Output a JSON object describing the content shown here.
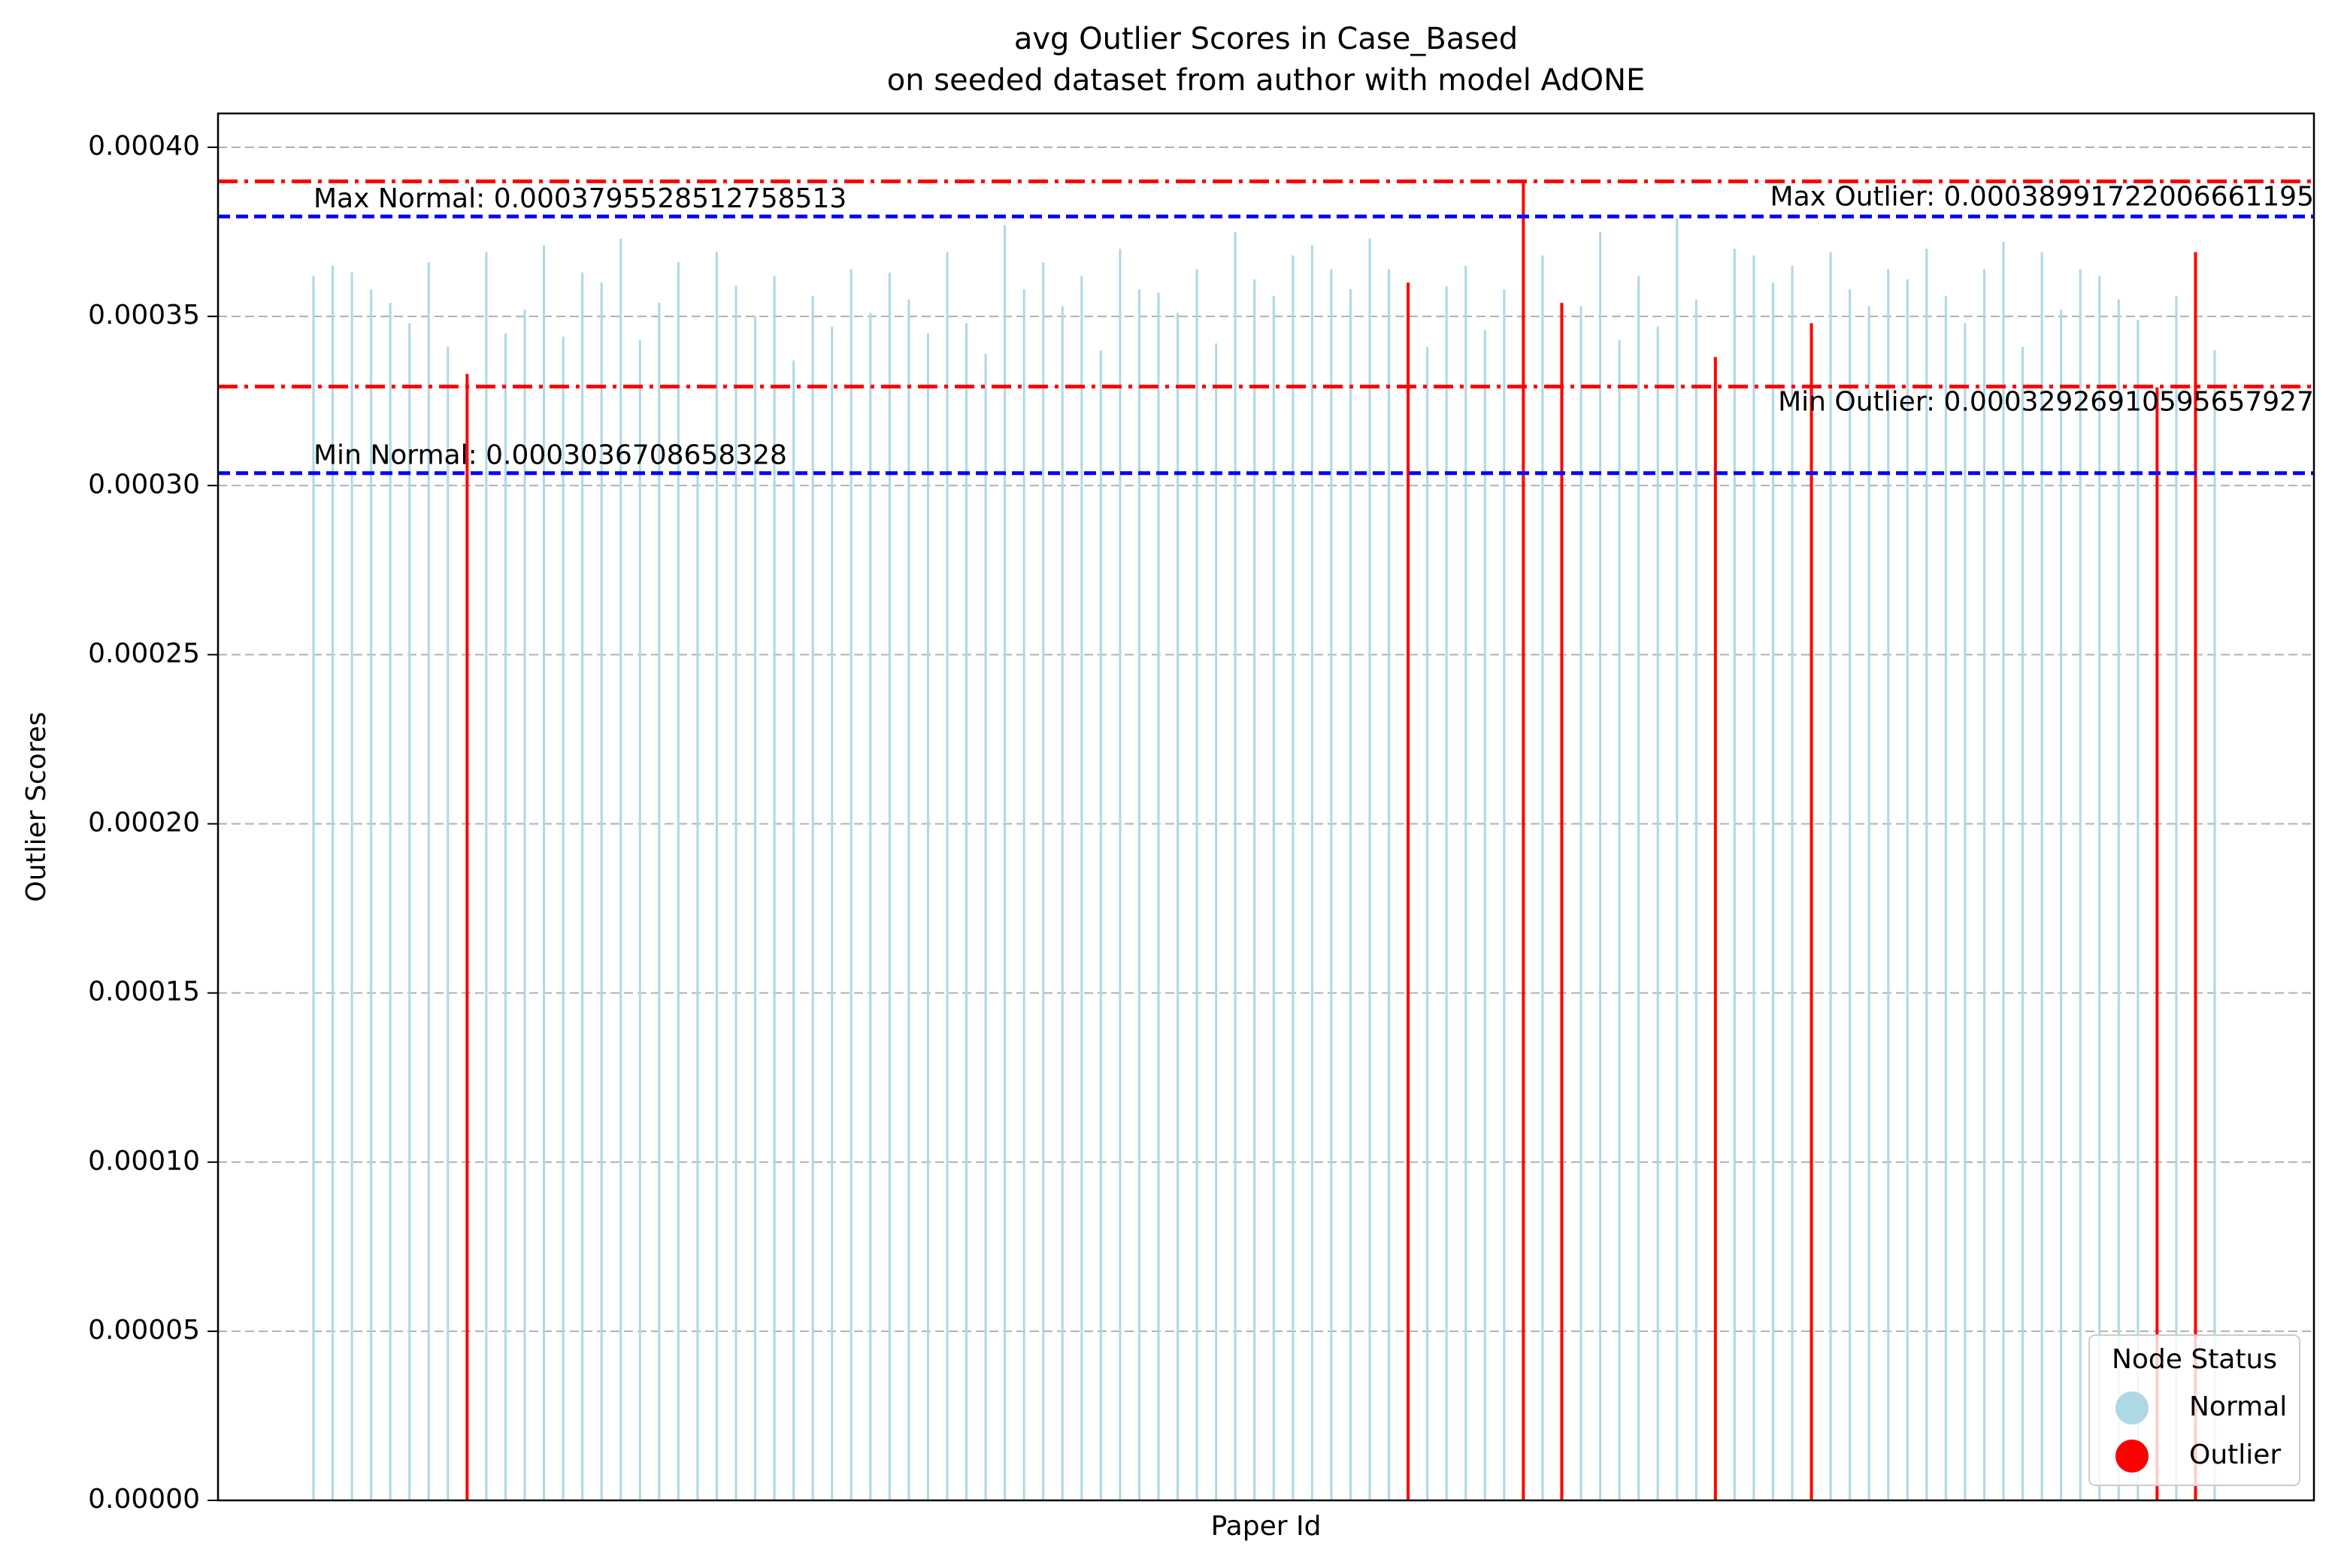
{
  "chart_data": {
    "type": "bar",
    "title": "avg Outlier Scores in Case_Based",
    "subtitle": "on seeded dataset from author with model AdONE",
    "x_label": "Paper Id",
    "y_label": "Outlier Scores",
    "categories": [
      null,
      null,
      null,
      null,
      null,
      null,
      null,
      null,
      null,
      null,
      null,
      null,
      null,
      null,
      null,
      null,
      null,
      null,
      null,
      null,
      null,
      null,
      null,
      null,
      null,
      null,
      null,
      null,
      null,
      null,
      null,
      null,
      null,
      null,
      null,
      null,
      null,
      null,
      null,
      null,
      null,
      null,
      null,
      null,
      null,
      null,
      null,
      null,
      null,
      null,
      null,
      null,
      null,
      null,
      null,
      null,
      null,
      null,
      null,
      null,
      null,
      null,
      null,
      null,
      null,
      null,
      null,
      null,
      null,
      null,
      null,
      null,
      null,
      null,
      null,
      null,
      null,
      null,
      null,
      null,
      null,
      null,
      null,
      null,
      null,
      null,
      null,
      null,
      null,
      null,
      null,
      null,
      null,
      null,
      null,
      null,
      null,
      null,
      null,
      null
    ],
    "series": [
      {
        "name": "Normal",
        "color": "#add8e6",
        "values": [
          0.000362,
          0.000365,
          0.000363,
          0.000358,
          0.000354,
          0.000348,
          0.000366,
          0.000341,
          null,
          0.000369,
          0.000345,
          0.000352,
          0.000371,
          0.000344,
          0.000363,
          0.00036,
          0.000373,
          0.000343,
          0.000354,
          0.000366,
          0.000304,
          0.000369,
          0.000359,
          0.00035,
          0.000362,
          0.000337,
          0.000356,
          0.000347,
          0.000364,
          0.000351,
          0.000363,
          0.000355,
          0.000345,
          0.000369,
          0.000348,
          0.000339,
          0.000377,
          0.000358,
          0.000366,
          0.000353,
          0.000362,
          0.00034,
          0.00037,
          0.000358,
          0.000357,
          0.000351,
          0.000364,
          0.000342,
          0.000375,
          0.000361,
          0.000356,
          0.000368,
          0.000371,
          0.000364,
          0.000358,
          0.000373,
          0.000364,
          null,
          0.000341,
          0.000359,
          0.000365,
          0.000346,
          0.000358,
          null,
          0.000368,
          null,
          0.000353,
          0.000375,
          0.000343,
          0.000362,
          0.000347,
          0.000379,
          0.000355,
          null,
          0.00037,
          0.000368,
          0.00036,
          0.000365,
          null,
          0.000369,
          0.000358,
          0.000353,
          0.000364,
          0.000361,
          0.00037,
          0.000356,
          0.000348,
          0.000364,
          0.000372,
          0.000341,
          0.000369,
          0.000352,
          0.000364,
          0.000362,
          0.000355,
          0.000349,
          null,
          0.000356,
          null,
          0.00034
        ]
      },
      {
        "name": "Outlier",
        "color": "#ff0000",
        "values": [
          null,
          null,
          null,
          null,
          null,
          null,
          null,
          null,
          0.000333,
          null,
          null,
          null,
          null,
          null,
          null,
          null,
          null,
          null,
          null,
          null,
          null,
          null,
          null,
          null,
          null,
          null,
          null,
          null,
          null,
          null,
          null,
          null,
          null,
          null,
          null,
          null,
          null,
          null,
          null,
          null,
          null,
          null,
          null,
          null,
          null,
          null,
          null,
          null,
          null,
          null,
          null,
          null,
          null,
          null,
          null,
          null,
          null,
          0.00036,
          null,
          null,
          null,
          null,
          null,
          0.00039,
          null,
          0.000354,
          null,
          null,
          null,
          null,
          null,
          null,
          null,
          0.000338,
          null,
          null,
          null,
          null,
          0.000348,
          null,
          null,
          null,
          null,
          null,
          null,
          null,
          null,
          null,
          null,
          null,
          null,
          null,
          null,
          null,
          null,
          null,
          0.000329,
          null,
          0.000369,
          null
        ]
      }
    ],
    "reference_lines": [
      {
        "label": "Max Normal: 0.0003795528512758513",
        "value": 0.0003795528512758513,
        "color": "#0000ff",
        "style": "dashed"
      },
      {
        "label": "Min Normal: 0.0003036708658328",
        "value": 0.0003036708658328,
        "color": "#0000ff",
        "style": "dashed"
      },
      {
        "label": "Max Outlier: 0.00038991722006661195",
        "value": 0.00038991722006661195,
        "color": "#ff0000",
        "style": "dashdot"
      },
      {
        "label": "Min Outlier: 0.00032926910595657927",
        "value": 0.00032926910595657927,
        "color": "#ff0000",
        "style": "dashdot"
      }
    ],
    "ylim": [
      0,
      0.00041
    ],
    "yticks": [
      {
        "value": 0,
        "label": "0.00000"
      },
      {
        "value": 5e-05,
        "label": "0.00005"
      },
      {
        "value": 0.0001,
        "label": "0.00010"
      },
      {
        "value": 0.00015,
        "label": "0.00015"
      },
      {
        "value": 0.0002,
        "label": "0.00020"
      },
      {
        "value": 0.00025,
        "label": "0.00025"
      },
      {
        "value": 0.0003,
        "label": "0.00030"
      },
      {
        "value": 0.00035,
        "label": "0.00035"
      },
      {
        "value": 0.0004,
        "label": "0.00040"
      }
    ],
    "grid": true,
    "legend_title": "Node Status",
    "legend_loc": "lower right"
  }
}
